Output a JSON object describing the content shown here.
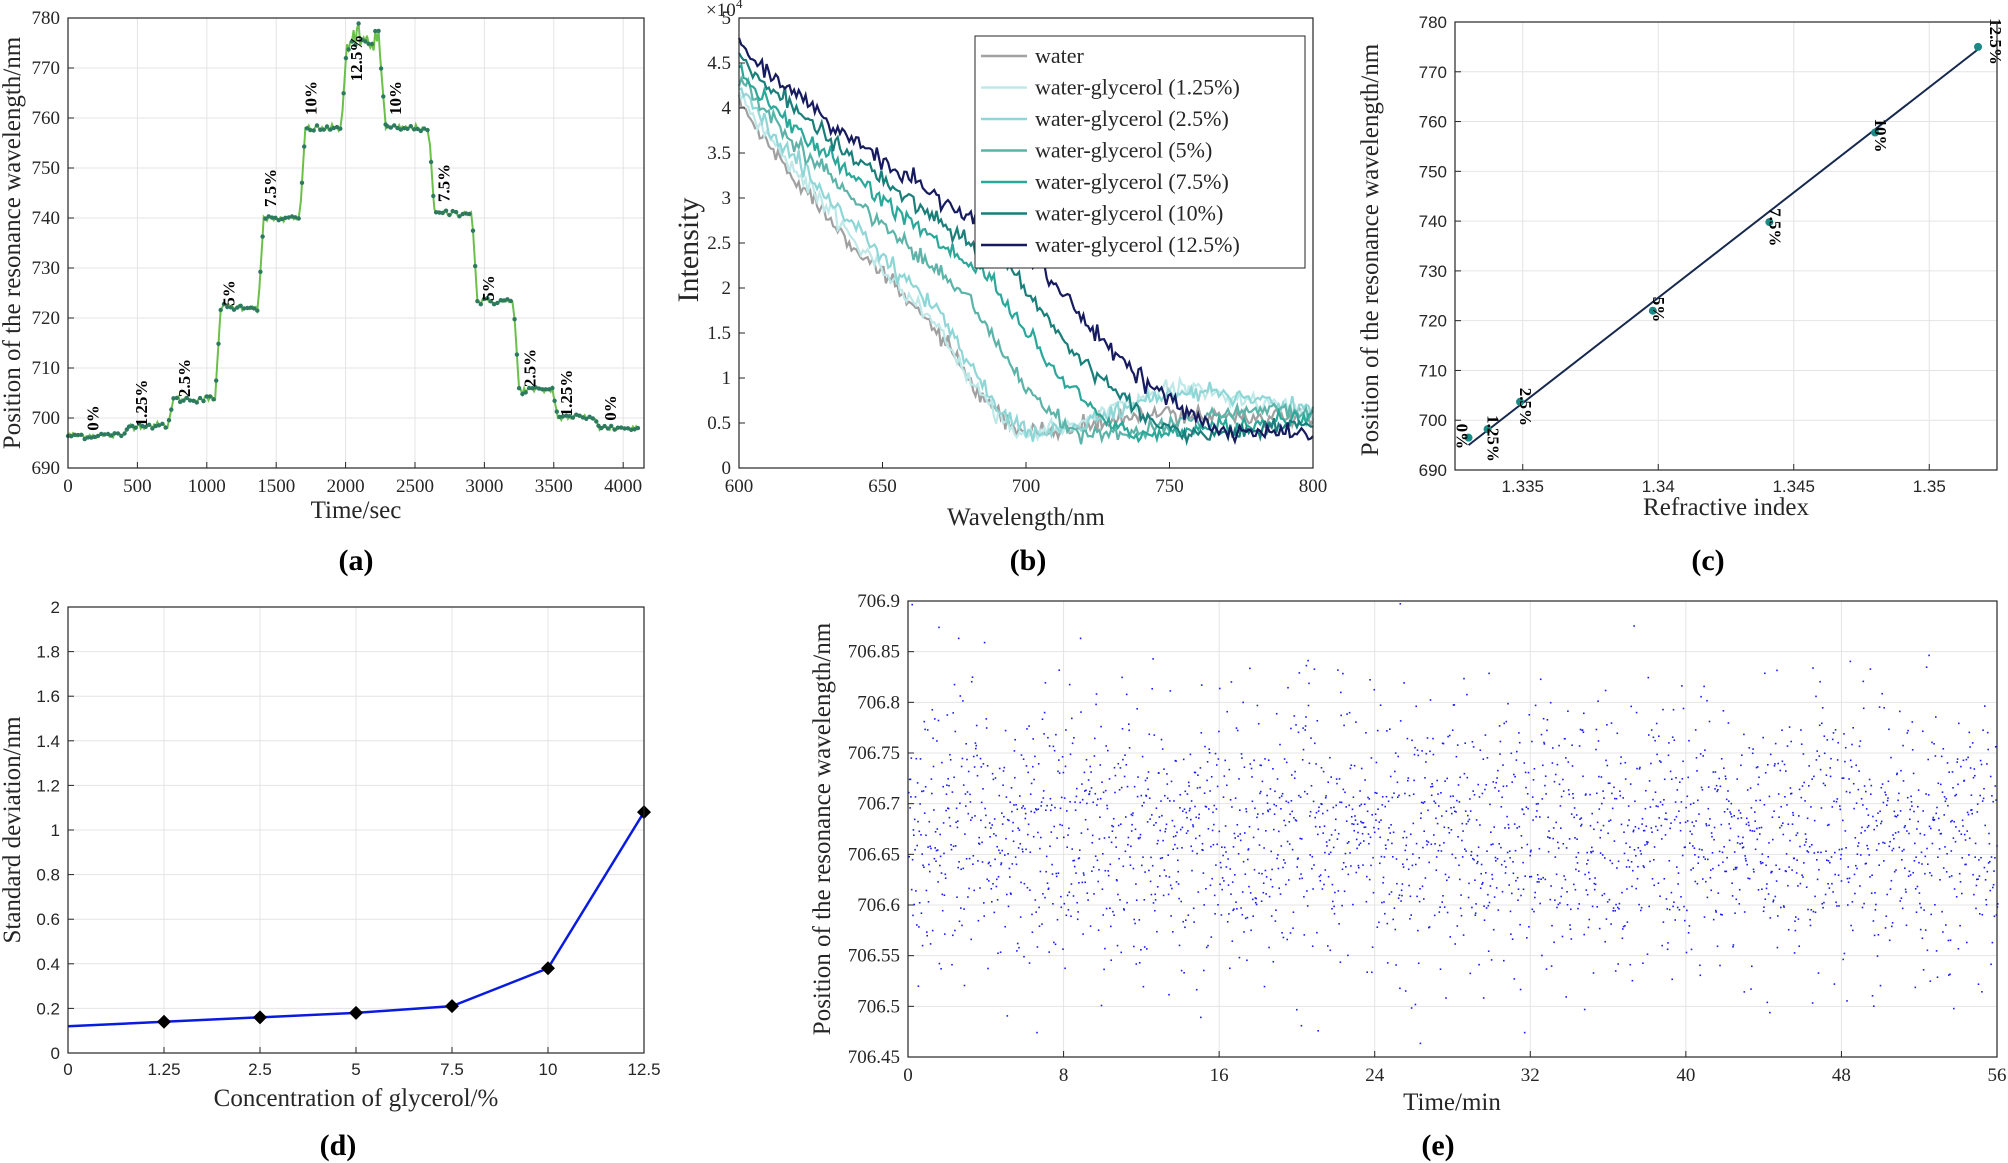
{
  "chart_data": [
    {
      "id": "a",
      "panel_label": "(a)",
      "type": "scatter",
      "xlabel": "Time/sec",
      "ylabel": "Position of the resonance wavelength/nm",
      "xlim": [
        0,
        4150
      ],
      "ylim": [
        690,
        780
      ],
      "xticks": [
        0,
        500,
        1000,
        1500,
        2000,
        2500,
        3000,
        3500,
        4000
      ],
      "yticks": [
        690,
        700,
        710,
        720,
        730,
        740,
        750,
        760,
        770,
        780
      ],
      "grid": true,
      "series": [
        {
          "color_line": "#6cc04a",
          "color_points": "#2d7a5e",
          "steps": [
            {
              "t0": 0,
              "t1": 400,
              "value": 696.5
            },
            {
              "t0": 440,
              "t1": 720,
              "value": 698.5
            },
            {
              "t0": 760,
              "t1": 1060,
              "value": 703.8
            },
            {
              "t0": 1100,
              "t1": 1370,
              "value": 722.2
            },
            {
              "t0": 1410,
              "t1": 1670,
              "value": 739.8
            },
            {
              "t0": 1710,
              "t1": 1970,
              "value": 757.9
            },
            {
              "t0": 2010,
              "t1": 2240,
              "value": 775.5
            },
            {
              "t0": 2290,
              "t1": 2600,
              "value": 758.0
            },
            {
              "t0": 2640,
              "t1": 2910,
              "value": 741.0
            },
            {
              "t0": 2950,
              "t1": 3210,
              "value": 723.3
            },
            {
              "t0": 3250,
              "t1": 3490,
              "value": 705.6
            },
            {
              "t0": 3530,
              "t1": 3790,
              "value": 700.2
            },
            {
              "t0": 3830,
              "t1": 4120,
              "value": 698.0
            }
          ]
        }
      ],
      "annotations": [
        {
          "text": "0%",
          "x": 220,
          "y": 700
        },
        {
          "text": "1.25%",
          "x": 570,
          "y": 703
        },
        {
          "text": "2.5%",
          "x": 880,
          "y": 708
        },
        {
          "text": "5%",
          "x": 1200,
          "y": 725
        },
        {
          "text": "7.5%",
          "x": 1500,
          "y": 746
        },
        {
          "text": "10%",
          "x": 1790,
          "y": 764
        },
        {
          "text": "12.5%",
          "x": 2120,
          "y": 772
        },
        {
          "text": "10%",
          "x": 2400,
          "y": 764
        },
        {
          "text": "7.5%",
          "x": 2750,
          "y": 747
        },
        {
          "text": "5%",
          "x": 3070,
          "y": 726
        },
        {
          "text": "2.5%",
          "x": 3370,
          "y": 710
        },
        {
          "text": "1.25%",
          "x": 3630,
          "y": 705
        },
        {
          "text": "0%",
          "x": 3950,
          "y": 702
        }
      ]
    },
    {
      "id": "b",
      "panel_label": "(b)",
      "type": "line",
      "xlabel": "Wavelength/nm",
      "ylabel": "Intensity",
      "exponent_label": "×10",
      "exponent_power": "4",
      "xlim": [
        600,
        800
      ],
      "ylim": [
        0,
        5
      ],
      "xticks": [
        600,
        650,
        700,
        750,
        800
      ],
      "yticks": [
        "0",
        "0.5",
        "1",
        "1.5",
        "2",
        "2.5",
        "3",
        "3.5",
        "4",
        "4.5",
        "5"
      ],
      "grid": false,
      "legend_position": "top-right",
      "series": [
        {
          "name": "water",
          "color": "#a0a0a0",
          "start": 4.1,
          "min_wl": 700,
          "min_val": 0.4,
          "peak_wl": 755,
          "peak_val": 0.6,
          "end": 0.55,
          "shoulder_wl": 670,
          "shoulder_val": 1.5
        },
        {
          "name": "water-glycerol (1.25%)",
          "color": "#bfe8e8",
          "start": 4.2,
          "min_wl": 700,
          "min_val": 0.4,
          "peak_wl": 758,
          "peak_val": 0.88,
          "end": 0.6,
          "shoulder_wl": 670,
          "shoulder_val": 1.55
        },
        {
          "name": "water-glycerol (2.5%)",
          "color": "#8fd6d6",
          "start": 4.3,
          "min_wl": 703,
          "min_val": 0.4,
          "peak_wl": 762,
          "peak_val": 0.85,
          "end": 0.65,
          "shoulder_wl": 672,
          "shoulder_val": 1.65
        },
        {
          "name": "water-glycerol (5%)",
          "color": "#5cb3a8",
          "start": 4.35,
          "min_wl": 722,
          "min_val": 0.38,
          "peak_wl": 785,
          "peak_val": 0.65,
          "end": 0.62,
          "shoulder_wl": 680,
          "shoulder_val": 1.9
        },
        {
          "name": "water-glycerol (7.5%)",
          "color": "#2aa89a",
          "start": 4.45,
          "min_wl": 740,
          "min_val": 0.38,
          "peak_wl": 800,
          "peak_val": 0.55,
          "end": 0.55,
          "shoulder_wl": 688,
          "shoulder_val": 2.1
        },
        {
          "name": "water-glycerol (10%)",
          "color": "#1a7f7a",
          "start": 4.6,
          "min_wl": 758,
          "min_val": 0.38,
          "peak_wl": 800,
          "peak_val": 0.48,
          "end": 0.48,
          "shoulder_wl": 695,
          "shoulder_val": 2.2
        },
        {
          "name": "water-glycerol (12.5%)",
          "color": "#161a5e",
          "start": 4.75,
          "min_wl": 776,
          "min_val": 0.37,
          "peak_wl": 800,
          "peak_val": 0.4,
          "end": 0.4,
          "shoulder_wl": 705,
          "shoulder_val": 2.25
        }
      ]
    },
    {
      "id": "c",
      "panel_label": "(c)",
      "type": "scatter",
      "xlabel": "Refractive index",
      "ylabel": "Position of the resonance wavelength/nm",
      "xlim": [
        1.3325,
        1.3525
      ],
      "ylim": [
        690,
        780
      ],
      "xticks": [
        "1.335",
        "1.34",
        "1.345",
        "1.35"
      ],
      "xtick_values": [
        1.335,
        1.34,
        1.345,
        1.35
      ],
      "yticks": [
        690,
        700,
        710,
        720,
        730,
        740,
        750,
        760,
        770,
        780
      ],
      "grid": true,
      "points": [
        {
          "x": 1.333,
          "y": 696.5,
          "label": "0%"
        },
        {
          "x": 1.3337,
          "y": 698.2,
          "label": "1.25%"
        },
        {
          "x": 1.3349,
          "y": 703.7,
          "label": "2.5%"
        },
        {
          "x": 1.3398,
          "y": 722.0,
          "label": "5%"
        },
        {
          "x": 1.3441,
          "y": 739.8,
          "label": "7.5%"
        },
        {
          "x": 1.348,
          "y": 757.8,
          "label": "10%"
        },
        {
          "x": 1.3518,
          "y": 775.0,
          "label": "12.5%"
        }
      ],
      "fit": {
        "x": [
          1.333,
          1.3518
        ],
        "y": [
          695.0,
          774.5
        ]
      },
      "point_color": "#1a8a86",
      "fit_color": "#16284e"
    },
    {
      "id": "d",
      "panel_label": "(d)",
      "type": "line",
      "xlabel": "Concentration of glycerol/%",
      "ylabel": "Standard deviation/nm",
      "categories": [
        "0",
        "1.25",
        "2.5",
        "5",
        "7.5",
        "10",
        "12.5"
      ],
      "ylim": [
        0,
        2
      ],
      "yticks": [
        "0",
        "0.2",
        "0.4",
        "0.6",
        "0.8",
        "1",
        "1.2",
        "1.4",
        "1.6",
        "1.8",
        "2"
      ],
      "grid": true,
      "series": [
        {
          "values": [
            0.12,
            0.14,
            0.16,
            0.18,
            0.21,
            0.38,
            1.08
          ],
          "color": "#0a1be0"
        }
      ]
    },
    {
      "id": "e",
      "panel_label": "(e)",
      "type": "scatter",
      "xlabel": "Time/min",
      "ylabel": "Position of the resonance wavelength/nm",
      "xlim": [
        0,
        56
      ],
      "ylim": [
        706.45,
        706.9
      ],
      "xticks": [
        0,
        8,
        16,
        24,
        32,
        40,
        48,
        56
      ],
      "yticks": [
        "706.45",
        "706.5",
        "706.55",
        "706.6",
        "706.65",
        "706.7",
        "706.75",
        "706.8",
        "706.85",
        "706.9"
      ],
      "grid": true,
      "series": [
        {
          "point_count": 2600,
          "mean": 706.67,
          "std": 0.065,
          "color": "#1a1aff"
        }
      ]
    }
  ]
}
